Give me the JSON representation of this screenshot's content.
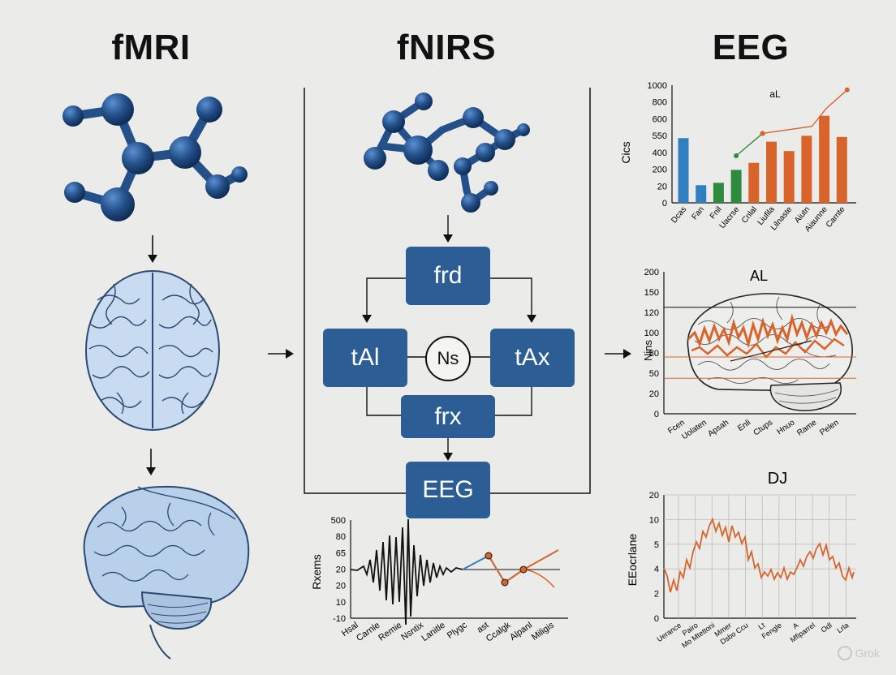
{
  "titles": {
    "left": "fMRI",
    "center": "fNIRS",
    "right": "EEG"
  },
  "flow": {
    "top_box": "frd",
    "left_box": "tAl",
    "right_box": "tAx",
    "center_node": "Ns",
    "lower_box": "frx",
    "bottom_box": "EEG"
  },
  "colors": {
    "molecule": "#24508a",
    "box": "#2c5e95",
    "brain_fill": "#b9d0ea",
    "brain_outline": "#2a4a72",
    "orange": "#d9642b",
    "blue": "#2f7fc1",
    "green": "#2e8b3e"
  },
  "watermark": "Grok",
  "chart_data": [
    {
      "type": "bar",
      "title": "aL",
      "ylabel": "Cics",
      "ylim": [
        0,
        1000
      ],
      "yticks": [
        "1000",
        "800",
        "600",
        "550",
        "400",
        "200",
        "20",
        "0"
      ],
      "categories": [
        "Dcas",
        "Fan",
        "Fnil",
        "Uacrse",
        "Cnlal",
        "Liufila",
        "Lilnaste",
        "Aiutn",
        "Aiaunne",
        "Carnte"
      ],
      "values": [
        550,
        150,
        170,
        280,
        340,
        520,
        440,
        570,
        740,
        560
      ],
      "bar_colors": [
        "#2f7fc1",
        "#2f7fc1",
        "#2e8b3e",
        "#2e8b3e",
        "#d9642b",
        "#d9642b",
        "#d9642b",
        "#d9642b",
        "#d9642b",
        "#d9642b"
      ],
      "line_series": [
        {
          "color": "#2e8b3e",
          "points": [
            [
              3,
              400
            ],
            [
              4.5,
              590
            ]
          ]
        },
        {
          "color": "#d9642b",
          "points": [
            [
              4.5,
              590
            ],
            [
              7.3,
              650
            ],
            [
              8.1,
              800
            ],
            [
              9.3,
              960
            ]
          ]
        }
      ]
    },
    {
      "type": "line",
      "title": "AL",
      "ylabel": "Nins",
      "ylim": [
        0,
        200
      ],
      "yticks": [
        "200",
        "150",
        "120",
        "100",
        "80",
        "50",
        "20",
        "0"
      ],
      "xticks": [
        "Fcen",
        "Uolaten",
        "Apsah",
        "Enli",
        "Ctups",
        "Hnuo",
        "Rame",
        "Pelen"
      ],
      "hlines": [
        150,
        80,
        50
      ]
    },
    {
      "type": "line",
      "title": "DJ",
      "ylabel": "EEocrlane",
      "ylim": [
        0,
        20
      ],
      "yticks": [
        "20",
        "10",
        "5",
        "4",
        "2",
        "0"
      ],
      "xticks": [
        "Uerance",
        "Pairo",
        "Mo Mtettoni",
        "Mmer",
        "Dsbo Ccu",
        "Lt",
        "Fengle",
        "A",
        "Mfiparrel",
        "Odl",
        "Lrla"
      ]
    },
    {
      "type": "line",
      "ylabel": "Rxems",
      "yticks": [
        "500",
        "80",
        "65",
        "20",
        "20",
        "10",
        "-10"
      ],
      "xticks": [
        "Hsal",
        "Carnle",
        "Remie",
        "Nsntix",
        "Lanitle",
        "Plygc",
        "ast",
        "Ccalgk",
        "Alpanl",
        "Miligis"
      ]
    }
  ]
}
